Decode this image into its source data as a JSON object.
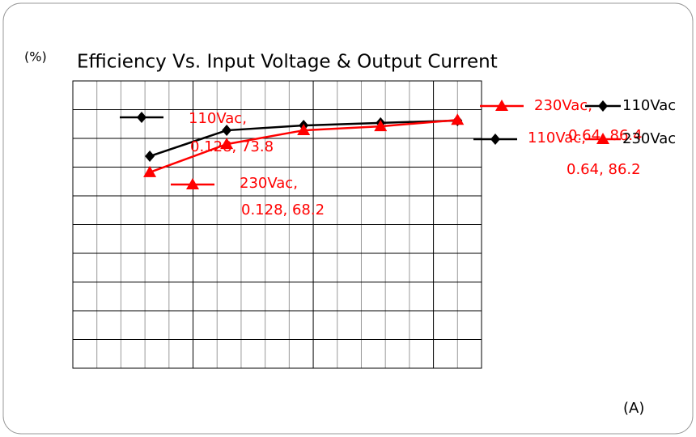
{
  "chart_data": {
    "type": "line",
    "title": "Efficiency Vs. Input Voltage & Output Current",
    "y_label": "(%)",
    "x_label": "(A)",
    "x": [
      0.128,
      0.256,
      0.384,
      0.512,
      0.64
    ],
    "series": [
      {
        "name": "110Vac",
        "color": "#000000",
        "marker": "diamond",
        "values": [
          73.8,
          82.8,
          84.5,
          85.4,
          86.2
        ],
        "value_labels": [
          "110Vac, 0.128, 73.8",
          null,
          null,
          null,
          "110Vac, 0.64, 86.2"
        ]
      },
      {
        "name": "230Vac",
        "color": "#ff0000",
        "marker": "triangle",
        "values": [
          68.2,
          78.0,
          82.8,
          84.2,
          86.4
        ],
        "value_labels": [
          "230Vac, 0.128, 68.2",
          null,
          null,
          null,
          "230Vac, 0.64, 86.4"
        ]
      }
    ],
    "xlim": [
      0,
      0.68
    ],
    "ylim": [
      0,
      100
    ],
    "xticks": [
      0,
      0.04,
      0.08,
      0.12,
      0.16,
      0.2,
      0.24,
      0.28,
      0.32,
      0.36,
      0.4,
      0.44,
      0.48,
      0.52,
      0.56,
      0.6,
      0.64,
      0.68
    ],
    "yticks": [
      0,
      10,
      20,
      30,
      40,
      50,
      60,
      70,
      80,
      90,
      100
    ],
    "grid": true,
    "show_tick_labels": false,
    "legend": "upper right"
  }
}
